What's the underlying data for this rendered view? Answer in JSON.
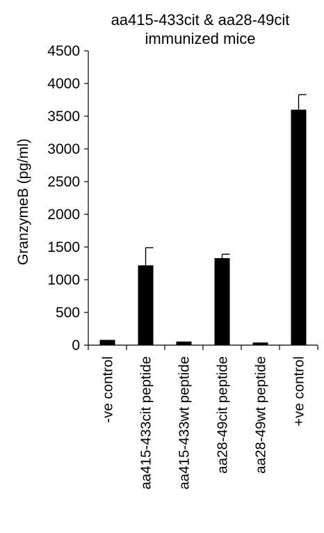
{
  "chart_data": {
    "type": "bar",
    "title_lines": [
      "aa415-433cit & aa28-49cit",
      "immunized mice"
    ],
    "xlabel": "",
    "ylabel": "GranzymeB (pg/ml)",
    "ylim": [
      0,
      4500
    ],
    "yticks": [
      "0",
      "500",
      "1000",
      "1500",
      "2000",
      "2500",
      "3000",
      "3500",
      "4000",
      "4500"
    ],
    "categories": [
      "-ve control",
      "aa415-433cit peptide",
      "aa415-433wt peptide",
      "aa28-49cit peptide",
      "aa28-49wt peptide",
      "+ve control"
    ],
    "values": [
      80,
      1220,
      55,
      1330,
      40,
      3600
    ],
    "errors": [
      0,
      270,
      0,
      60,
      0,
      230
    ],
    "grid": false,
    "bar_color": "#000000"
  }
}
